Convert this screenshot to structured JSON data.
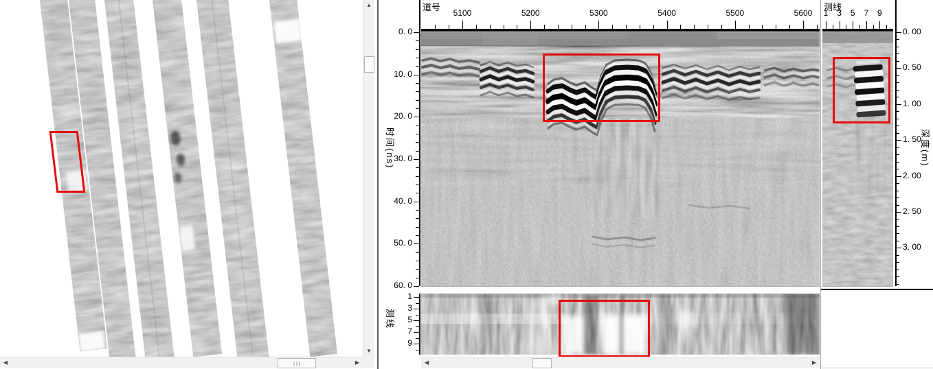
{
  "map_panel": {
    "swath_count": 6,
    "highlight_color": "#e60b0b",
    "scrollbar_icons": {
      "up": "▲",
      "down": "▼",
      "left": "◀",
      "right": "▶"
    }
  },
  "radargram": {
    "trace_axis": {
      "title": "道号",
      "major_ticks": [
        "5100",
        "5200",
        "5300",
        "5400",
        "5500",
        "5600"
      ],
      "minor_step": 20
    },
    "time_axis": {
      "title": "时间(ns)",
      "major_ticks": [
        "0. 0",
        "10. 0",
        "20. 0",
        "30. 0",
        "40. 0",
        "50. 0",
        "60. 0"
      ]
    },
    "depth_axis": {
      "title": "深度(m)",
      "major_ticks": [
        "0. 00",
        "0. 50",
        "1. 00",
        "1. 50",
        "2. 00",
        "2. 50",
        "3. 00"
      ]
    },
    "top_line_axis": {
      "title": "测线",
      "major_ticks": [
        "1",
        "3",
        "5",
        "7",
        "9"
      ],
      "line_count": 10
    },
    "bottom_line_axis": {
      "title": "测线",
      "major_ticks": [
        "1",
        "3",
        "5",
        "7",
        "9"
      ]
    },
    "highlight_color": "#e60b0b"
  },
  "plan_scrollbar_icons": {
    "left": "◀",
    "right": "▶"
  }
}
